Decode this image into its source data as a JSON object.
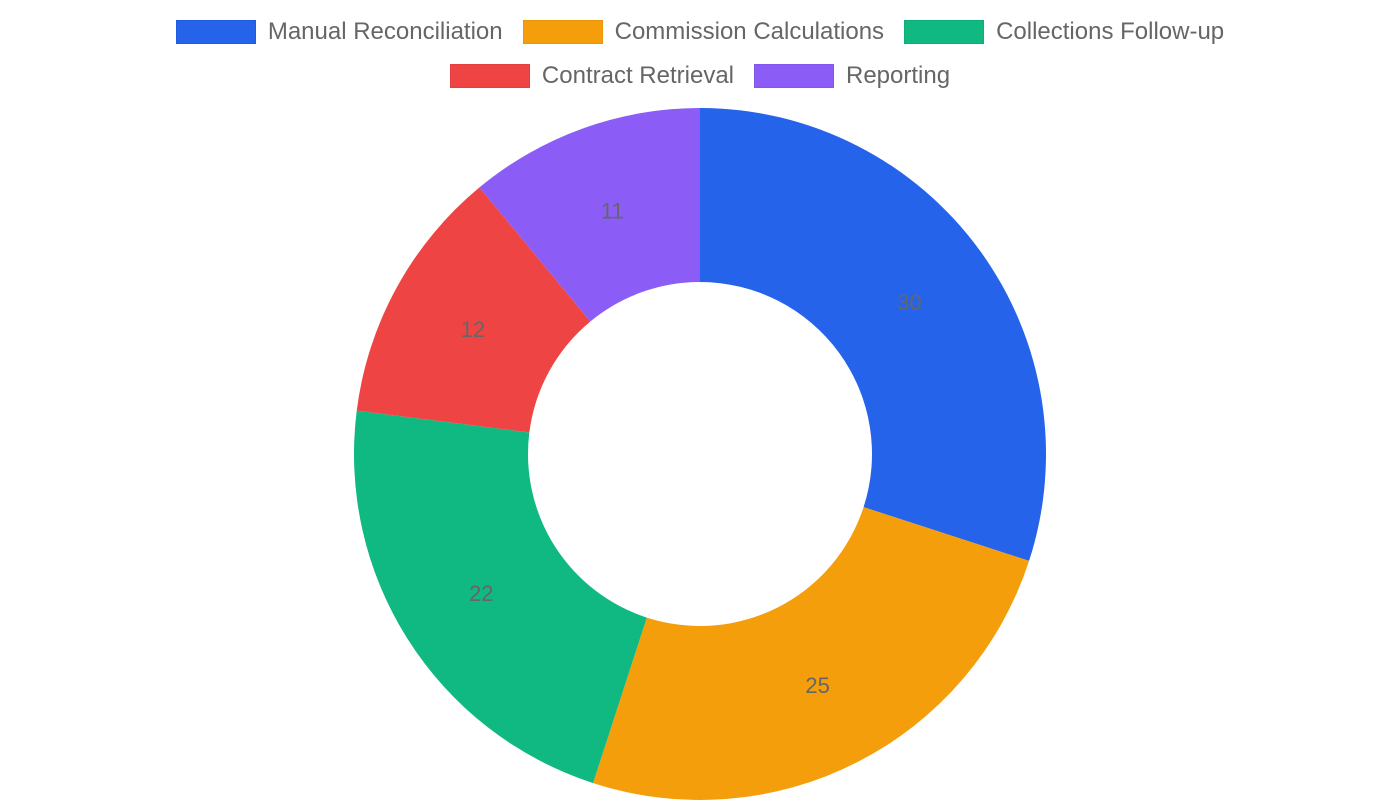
{
  "chart_data": {
    "type": "pie",
    "variant": "doughnut",
    "title": "",
    "categories": [
      "Manual Reconciliation",
      "Commission Calculations",
      "Collections Follow-up",
      "Contract Retrieval",
      "Reporting"
    ],
    "values": [
      30,
      25,
      22,
      12,
      11
    ],
    "colors": [
      "#2563eb",
      "#f59e0b",
      "#10b981",
      "#ef4444",
      "#8b5cf6"
    ],
    "legend_position": "top",
    "data_labels": [
      "30",
      "25",
      "22",
      "12",
      "11"
    ]
  },
  "legend": {
    "items": [
      {
        "label": "Manual Reconciliation",
        "color": "#2563eb"
      },
      {
        "label": "Commission Calculations",
        "color": "#f59e0b"
      },
      {
        "label": "Collections Follow-up",
        "color": "#10b981"
      },
      {
        "label": "Contract Retrieval",
        "color": "#ef4444"
      },
      {
        "label": "Reporting",
        "color": "#8b5cf6"
      }
    ]
  }
}
